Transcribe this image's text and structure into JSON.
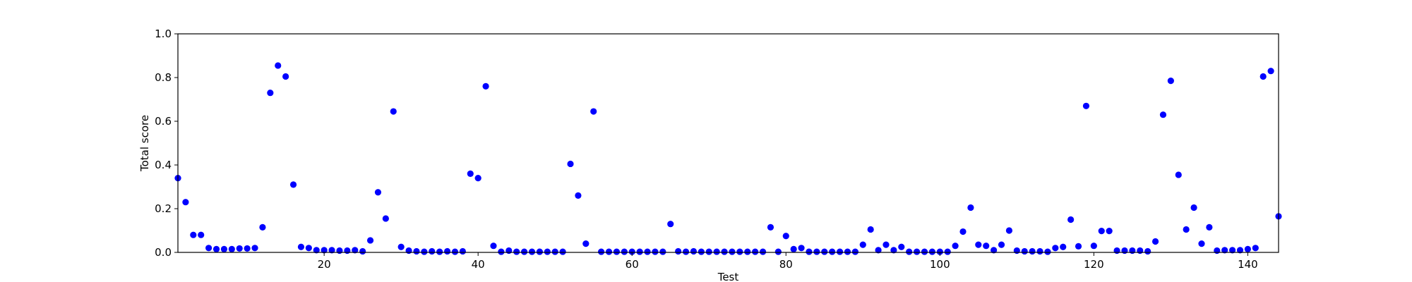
{
  "chart_data": {
    "type": "scatter",
    "title": "",
    "xlabel": "Test",
    "ylabel": "Total score",
    "xlim": [
      1,
      144
    ],
    "ylim": [
      0.0,
      1.0
    ],
    "xticks": [
      20,
      40,
      60,
      80,
      100,
      120,
      140
    ],
    "yticks": [
      0.0,
      0.2,
      0.4,
      0.6,
      0.8,
      1.0
    ],
    "ytick_labels": [
      "0.0",
      "0.2",
      "0.4",
      "0.6",
      "0.8",
      "1.0"
    ],
    "grid": false,
    "legend": "none",
    "marker_color": "#0000ff",
    "series": [
      {
        "x": [
          1,
          2,
          3,
          4,
          5,
          6,
          7,
          8,
          9,
          10,
          11,
          12,
          13,
          14,
          15,
          16,
          17,
          18,
          19,
          20,
          21,
          22,
          23,
          24,
          25,
          26,
          27,
          28,
          29,
          30,
          31,
          32,
          33,
          34,
          35,
          36,
          37,
          38,
          39,
          40,
          41,
          42,
          43,
          44,
          45,
          46,
          47,
          48,
          49,
          50,
          51,
          52,
          53,
          54,
          55,
          56,
          57,
          58,
          59,
          60,
          61,
          62,
          63,
          64,
          65,
          66,
          67,
          68,
          69,
          70,
          71,
          72,
          73,
          74,
          75,
          76,
          77,
          78,
          79,
          80,
          81,
          82,
          83,
          84,
          85,
          86,
          87,
          88,
          89,
          90,
          91,
          92,
          93,
          94,
          95,
          96,
          97,
          98,
          99,
          100,
          101,
          102,
          103,
          104,
          105,
          106,
          107,
          108,
          109,
          110,
          111,
          112,
          113,
          114,
          115,
          116,
          117,
          118,
          119,
          120,
          121,
          122,
          123,
          124,
          125,
          126,
          127,
          128,
          129,
          130,
          131,
          132,
          133,
          134,
          135,
          136,
          137,
          138,
          139,
          140,
          141,
          142,
          143,
          144
        ],
        "y": [
          0.34,
          0.23,
          0.08,
          0.08,
          0.02,
          0.015,
          0.015,
          0.015,
          0.018,
          0.018,
          0.02,
          0.115,
          0.73,
          0.855,
          0.805,
          0.31,
          0.025,
          0.02,
          0.01,
          0.01,
          0.01,
          0.008,
          0.008,
          0.01,
          0.005,
          0.055,
          0.275,
          0.155,
          0.645,
          0.025,
          0.008,
          0.005,
          0.003,
          0.005,
          0.003,
          0.005,
          0.003,
          0.005,
          0.36,
          0.34,
          0.76,
          0.03,
          0.003,
          0.008,
          0.003,
          0.003,
          0.003,
          0.003,
          0.003,
          0.003,
          0.003,
          0.405,
          0.26,
          0.04,
          0.645,
          0.003,
          0.003,
          0.003,
          0.003,
          0.003,
          0.003,
          0.003,
          0.003,
          0.003,
          0.13,
          0.005,
          0.003,
          0.005,
          0.003,
          0.003,
          0.003,
          0.003,
          0.003,
          0.003,
          0.003,
          0.003,
          0.003,
          0.115,
          0.003,
          0.075,
          0.015,
          0.02,
          0.003,
          0.003,
          0.003,
          0.003,
          0.003,
          0.003,
          0.003,
          0.035,
          0.105,
          0.01,
          0.035,
          0.01,
          0.025,
          0.003,
          0.003,
          0.003,
          0.003,
          0.003,
          0.003,
          0.03,
          0.095,
          0.205,
          0.035,
          0.03,
          0.01,
          0.035,
          0.1,
          0.008,
          0.005,
          0.005,
          0.005,
          0.003,
          0.02,
          0.025,
          0.15,
          0.028,
          0.67,
          0.03,
          0.098,
          0.098,
          0.008,
          0.008,
          0.008,
          0.008,
          0.005,
          0.05,
          0.63,
          0.785,
          0.355,
          0.105,
          0.205,
          0.04,
          0.115,
          0.008,
          0.01,
          0.01,
          0.01,
          0.015,
          0.02,
          0.805,
          0.83,
          0.165
        ]
      }
    ]
  }
}
